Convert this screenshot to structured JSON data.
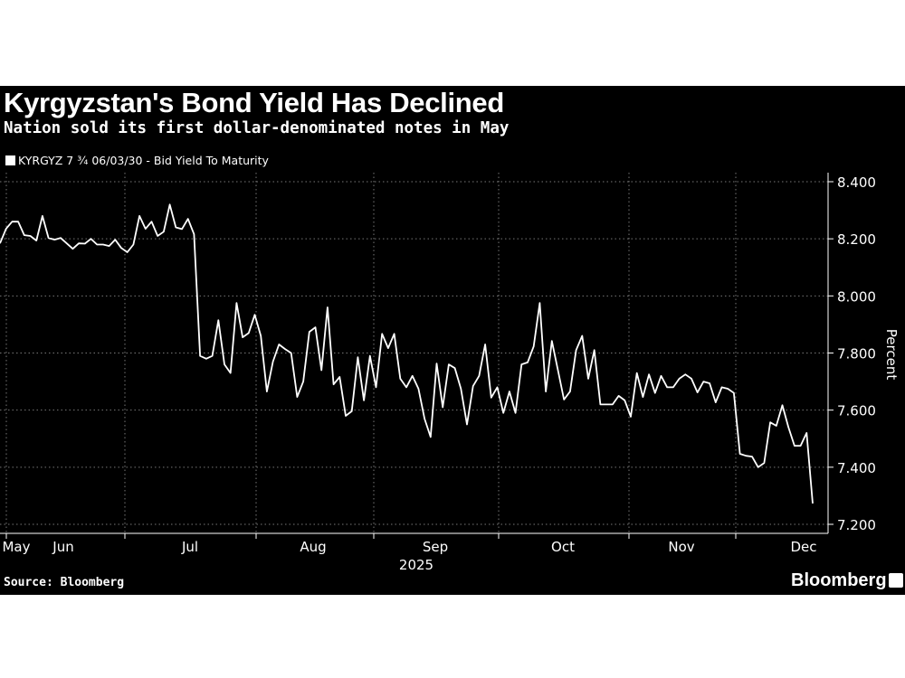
{
  "chart_data": {
    "type": "line",
    "title": "Kyrgyzstan's Bond Yield Has Declined",
    "subtitle": "Nation sold its first dollar-denominated notes in May",
    "series": [
      {
        "name": "KYRGYZ 7 ¾ 06/03/30 - Bid Yield To Maturity",
        "color": "#ffffff",
        "values": [
          8.184,
          8.235,
          8.26,
          8.26,
          8.213,
          8.21,
          8.194,
          8.28,
          8.203,
          8.197,
          8.203,
          8.184,
          8.165,
          8.184,
          8.183,
          8.2,
          8.18,
          8.18,
          8.175,
          8.197,
          8.168,
          8.153,
          8.18,
          8.28,
          8.235,
          8.26,
          8.21,
          8.225,
          8.32,
          8.24,
          8.234,
          8.27,
          8.216,
          7.79,
          7.78,
          7.79,
          7.915,
          7.76,
          7.73,
          7.975,
          7.855,
          7.87,
          7.934,
          7.86,
          7.665,
          7.77,
          7.83,
          7.814,
          7.8,
          7.646,
          7.7,
          7.874,
          7.89,
          7.74,
          7.96,
          7.69,
          7.716,
          7.58,
          7.596,
          7.785,
          7.634,
          7.79,
          7.68,
          7.867,
          7.817,
          7.867,
          7.71,
          7.68,
          7.72,
          7.675,
          7.57,
          7.506,
          7.763,
          7.61,
          7.76,
          7.747,
          7.675,
          7.55,
          7.684,
          7.72,
          7.83,
          7.644,
          7.68,
          7.59,
          7.665,
          7.59,
          7.76,
          7.767,
          7.823,
          7.975,
          7.665,
          7.842,
          7.74,
          7.637,
          7.665,
          7.81,
          7.86,
          7.71,
          7.81,
          7.62,
          7.62,
          7.62,
          7.65,
          7.634,
          7.577,
          7.73,
          7.646,
          7.725,
          7.66,
          7.72,
          7.68,
          7.68,
          7.71,
          7.725,
          7.71,
          7.662,
          7.7,
          7.694,
          7.627,
          7.68,
          7.675,
          7.66,
          7.447,
          7.44,
          7.437,
          7.4,
          7.415,
          7.557,
          7.545,
          7.617,
          7.54,
          7.475,
          7.475,
          7.52,
          7.273
        ]
      }
    ],
    "x_tick_labels": [
      "May",
      "Jun",
      "Jul",
      "Aug",
      "Sep",
      "Oct",
      "Nov",
      "Dec"
    ],
    "x_year_label": "2025",
    "y_tick_labels": [
      "8.400",
      "8.200",
      "8.000",
      "7.800",
      "7.600",
      "7.400",
      "7.200"
    ],
    "y_ticks": [
      8.4,
      8.2,
      8.0,
      7.8,
      7.6,
      7.4,
      7.2
    ],
    "ylim": [
      7.2,
      8.4
    ],
    "ylabel": "Percent",
    "xlabel": "",
    "grid": true,
    "legend_position": "top-left",
    "background": "#000000"
  },
  "footer": {
    "source": "Source: Bloomberg",
    "brand": "Bloomberg"
  }
}
